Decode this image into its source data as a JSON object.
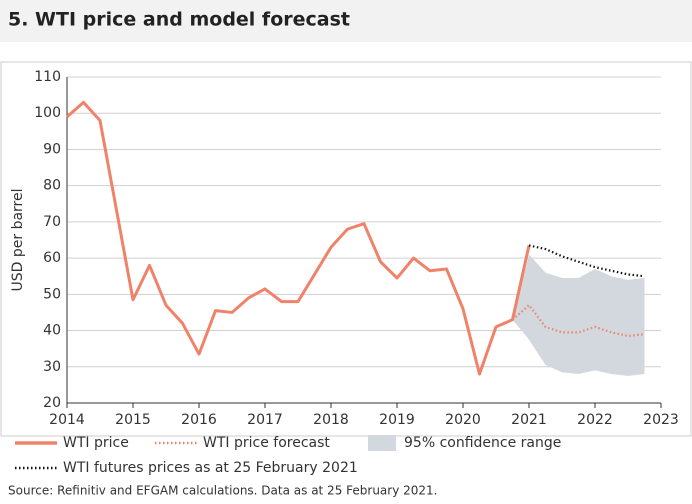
{
  "chart_data": {
    "type": "line",
    "title": "5. WTI price and model forecast",
    "y_label": "USD per barrel",
    "source": "Source: Refinitiv and EFGAM calculations. Data as at 25 February 2021.",
    "xlim": [
      2014,
      2023
    ],
    "xticks": [
      2014,
      2015,
      2016,
      2017,
      2018,
      2019,
      2020,
      2021,
      2022,
      2023
    ],
    "ylim": [
      20,
      110
    ],
    "yticks": [
      20,
      30,
      40,
      50,
      60,
      70,
      80,
      90,
      100,
      110
    ],
    "grid": true,
    "band": {
      "name": "95% confidence range",
      "color": "#d3d8de",
      "x": [
        2020.75,
        2021,
        2021.25,
        2021.5,
        2021.75,
        2022,
        2022.25,
        2022.5,
        2022.75
      ],
      "lower": [
        43,
        37.5,
        30.5,
        28.5,
        28,
        29,
        28,
        27.5,
        28
      ],
      "upper": [
        43,
        61,
        56,
        54.5,
        54.5,
        57,
        55,
        54,
        54.5
      ]
    },
    "series": [
      {
        "name": "WTI price",
        "color": "#f0826a",
        "style": "solid",
        "x": [
          2014,
          2014.25,
          2014.5,
          2015,
          2015.25,
          2015.5,
          2015.75,
          2016,
          2016.25,
          2016.5,
          2016.75,
          2017,
          2017.25,
          2017.5,
          2017.75,
          2018,
          2018.25,
          2018.5,
          2018.75,
          2019,
          2019.25,
          2019.5,
          2019.75,
          2020,
          2020.25,
          2020.5,
          2020.75,
          2021
        ],
        "values": [
          99,
          103,
          98,
          48.5,
          58,
          47,
          42,
          33.5,
          45.5,
          45,
          49,
          51.5,
          48,
          48,
          55.5,
          63,
          68,
          69.5,
          59,
          54.5,
          60,
          56.5,
          57,
          46,
          28,
          41,
          43,
          63.5
        ]
      },
      {
        "name": "WTI price forecast",
        "color": "#f0826a",
        "style": "dotted",
        "x": [
          2020.75,
          2021,
          2021.25,
          2021.5,
          2021.75,
          2022,
          2022.25,
          2022.5,
          2022.75
        ],
        "values": [
          43,
          47,
          41,
          39.5,
          39.5,
          41,
          39.5,
          38.5,
          39
        ]
      },
      {
        "name": "WTI futures prices as at 25 February 2021",
        "color": "#111111",
        "style": "dotted",
        "x": [
          2021,
          2021.25,
          2021.5,
          2021.75,
          2022,
          2022.25,
          2022.5,
          2022.75
        ],
        "values": [
          63.5,
          62.5,
          60.5,
          59,
          57.5,
          56.5,
          55.5,
          55
        ]
      }
    ]
  }
}
